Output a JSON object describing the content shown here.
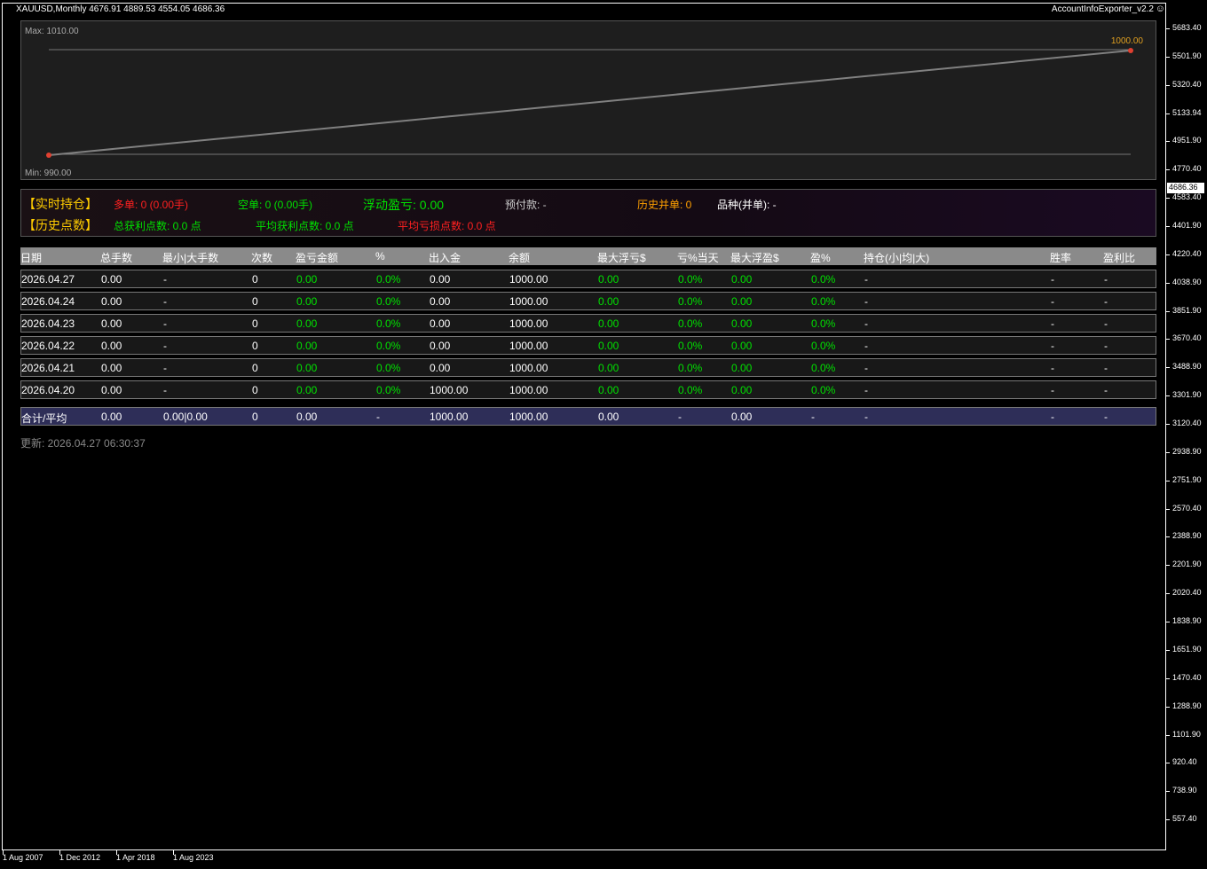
{
  "window": {
    "symbol_line": "XAUUSD,Monthly  4676.91 4889.53 4554.05 4686.36",
    "expert": "AccountInfoExporter_v2.2",
    "expert_icon": "smiley-icon"
  },
  "equity_chart": {
    "max_label": "Max: 1010.00",
    "min_label": "Min: 990.00",
    "end_label": "1000.00",
    "line_color": "#808080",
    "dot_color": "#e04030",
    "max": 1010,
    "min": 990,
    "start_value": 990,
    "end_value": 1000
  },
  "info": {
    "realtime_title": "【实时持仓】",
    "long": "多单: 0 (0.00手)",
    "short": "空单: 0 (0.00手)",
    "floating": "浮动盈亏: 0.00",
    "prepay": "预付款: -",
    "history_close": "历史并单: 0",
    "symbol_close": "品种(并单): -",
    "history_title": "【历史点数】",
    "total_profit_pts": "总获利点数: 0.0 点",
    "avg_profit_pts": "平均获利点数: 0.0 点",
    "avg_loss_pts": "平均亏损点数: 0.0 点"
  },
  "table": {
    "headers": [
      "日期",
      "总手数",
      "最小|大手数",
      "次数",
      "盈亏金额",
      "%",
      "出入金",
      "余额",
      "最大浮亏$",
      "亏%当天",
      "最大浮盈$",
      "盈%",
      "持仓(小|均|大)",
      "胜率",
      "盈利比"
    ],
    "rows": [
      [
        "2026.04.27",
        "0.00",
        "-",
        "0",
        "0.00",
        "0.0%",
        "0.00",
        "1000.00",
        "0.00",
        "0.0%",
        "0.00",
        "0.0%",
        "-",
        "-",
        "-"
      ],
      [
        "2026.04.24",
        "0.00",
        "-",
        "0",
        "0.00",
        "0.0%",
        "0.00",
        "1000.00",
        "0.00",
        "0.0%",
        "0.00",
        "0.0%",
        "-",
        "-",
        "-"
      ],
      [
        "2026.04.23",
        "0.00",
        "-",
        "0",
        "0.00",
        "0.0%",
        "0.00",
        "1000.00",
        "0.00",
        "0.0%",
        "0.00",
        "0.0%",
        "-",
        "-",
        "-"
      ],
      [
        "2026.04.22",
        "0.00",
        "-",
        "0",
        "0.00",
        "0.0%",
        "0.00",
        "1000.00",
        "0.00",
        "0.0%",
        "0.00",
        "0.0%",
        "-",
        "-",
        "-"
      ],
      [
        "2026.04.21",
        "0.00",
        "-",
        "0",
        "0.00",
        "0.0%",
        "0.00",
        "1000.00",
        "0.00",
        "0.0%",
        "0.00",
        "0.0%",
        "-",
        "-",
        "-"
      ],
      [
        "2026.04.20",
        "0.00",
        "-",
        "0",
        "0.00",
        "0.0%",
        "1000.00",
        "1000.00",
        "0.00",
        "0.0%",
        "0.00",
        "0.0%",
        "-",
        "-",
        "-"
      ]
    ],
    "total": [
      "合计/平均",
      "0.00",
      "0.00|0.00",
      "0",
      "0.00",
      "-",
      "1000.00",
      "1000.00",
      "0.00",
      "-",
      "0.00",
      "-",
      "-",
      "-",
      "-"
    ]
  },
  "updated": "更新: 2026.04.27 06:30:37",
  "price_axis": [
    "5683.40",
    "5501.90",
    "5320.40",
    "5133.94",
    "4951.90",
    "4770.40",
    "4583.40",
    "4401.90",
    "4220.40",
    "4038.90",
    "3851.90",
    "3670.40",
    "3488.90",
    "3301.90",
    "3120.40",
    "2938.90",
    "2751.90",
    "2570.40",
    "2388.90",
    "2201.90",
    "2020.40",
    "1838.90",
    "1651.90",
    "1470.40",
    "1288.90",
    "1101.90",
    "920.40",
    "738.90",
    "557.40"
  ],
  "current_price": "4686.36",
  "time_axis": [
    "1 Aug 2007",
    "1 Dec 2012",
    "1 Apr 2018",
    "1 Aug 2023"
  ]
}
